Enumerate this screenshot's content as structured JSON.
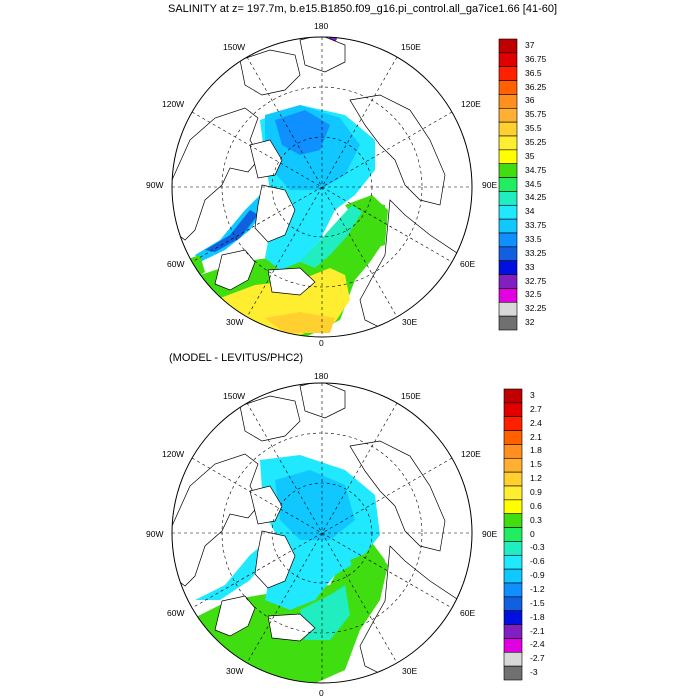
{
  "panel1": {
    "title": "SALINITY at z= 197.7m, b.e15.B1850.f09_g16.pi_control.all_ga7ice1.66 [41-60]",
    "lon_labels": {
      "n": "180",
      "nw": "150W",
      "ne": "150E",
      "wnw": "120W",
      "ene": "120E",
      "w": "90W",
      "e": "90E",
      "wsw": "60W",
      "ese": "60E",
      "sw": "30W",
      "se": "30E",
      "s": "0"
    },
    "colorbar": {
      "labels": [
        "37",
        "36.75",
        "36.5",
        "36.25",
        "36",
        "35.75",
        "35.5",
        "35.25",
        "35",
        "34.75",
        "34.5",
        "34.25",
        "34",
        "33.75",
        "33.5",
        "33.25",
        "33",
        "32.75",
        "32.5",
        "32.25",
        "32"
      ],
      "colors": [
        "#c00000",
        "#e00000",
        "#ff2000",
        "#ff6000",
        "#ff9020",
        "#ffb030",
        "#ffd030",
        "#ffee30",
        "#ffff00",
        "#40dd10",
        "#20ee60",
        "#20eec0",
        "#20e8ff",
        "#10c8ff",
        "#1090ff",
        "#1060e0",
        "#0010e0",
        "#8020c0",
        "#e000e0",
        "#d8d8d8",
        "#707070"
      ]
    }
  },
  "panel2": {
    "title": "(MODEL - LEVITUS/PHC2)",
    "lon_labels": {
      "n": "180",
      "nw": "150W",
      "ne": "150E",
      "wnw": "120W",
      "ene": "120E",
      "w": "90W",
      "e": "90E",
      "wsw": "60W",
      "ese": "60E",
      "sw": "30W",
      "se": "30E",
      "s": "0"
    },
    "colorbar": {
      "labels": [
        "3",
        "2.7",
        "2.4",
        "2.1",
        "1.8",
        "1.5",
        "1.2",
        "0.9",
        "0.6",
        "0.3",
        "0",
        "-0.3",
        "-0.6",
        "-0.9",
        "-1.2",
        "-1.5",
        "-1.8",
        "-2.1",
        "-2.4",
        "-2.7",
        "-3"
      ],
      "colors": [
        "#c00000",
        "#e00000",
        "#ff2000",
        "#ff6000",
        "#ff9020",
        "#ffb030",
        "#ffd030",
        "#ffee30",
        "#ffff00",
        "#40dd10",
        "#20ee60",
        "#20eec0",
        "#20e8ff",
        "#10c8ff",
        "#1090ff",
        "#1060e0",
        "#0010e0",
        "#8020c0",
        "#e000e0",
        "#d8d8d8",
        "#707070"
      ]
    }
  }
}
